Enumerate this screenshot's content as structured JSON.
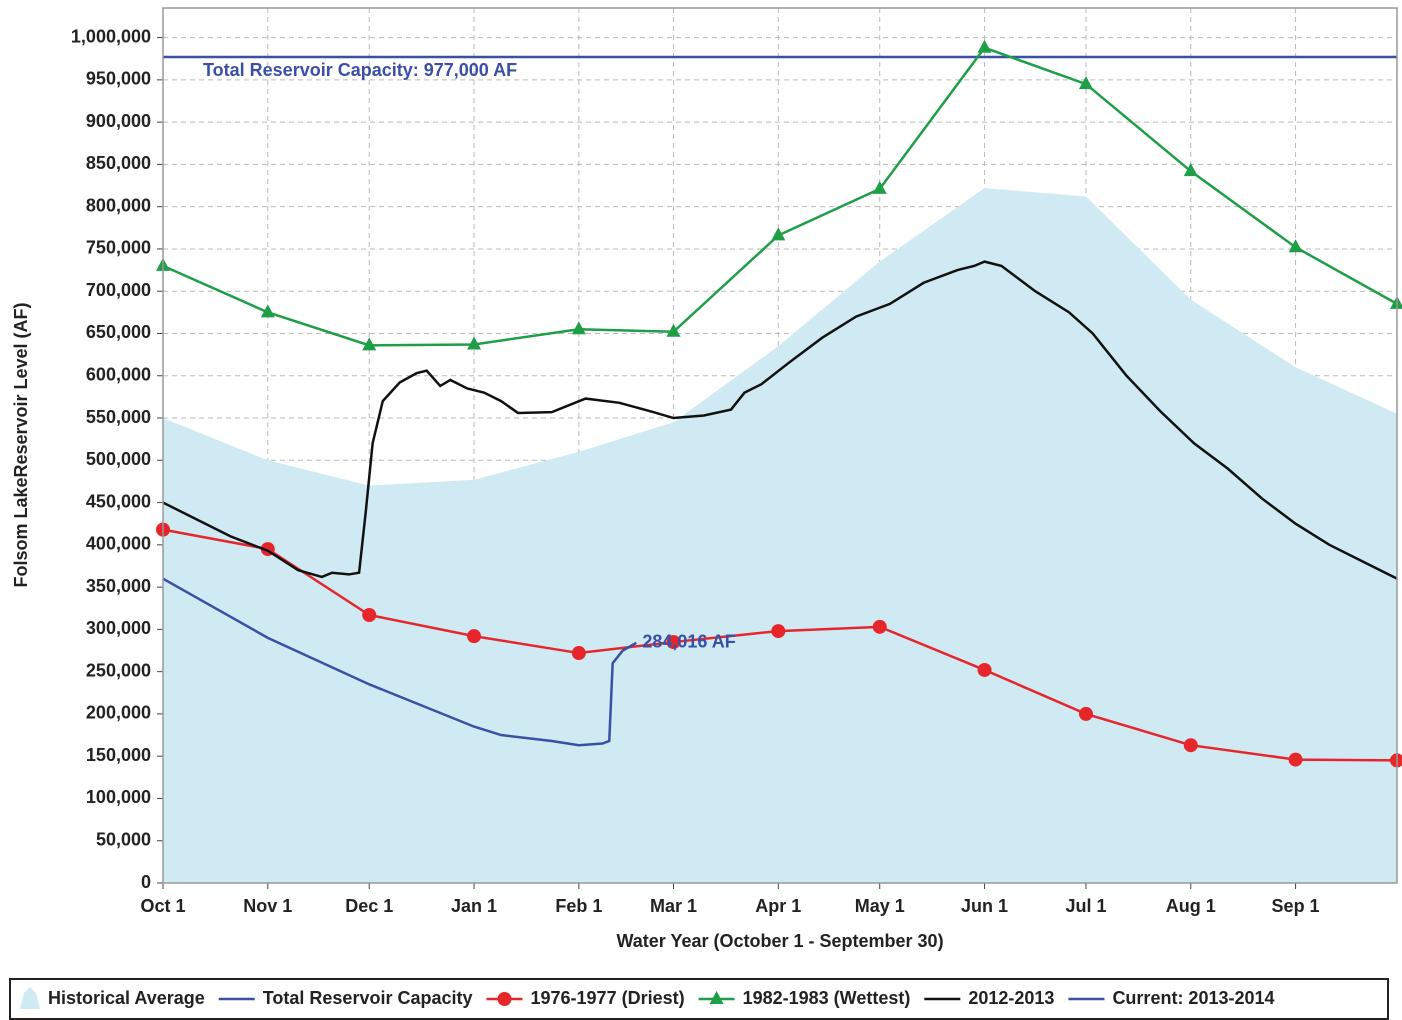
{
  "chart_data": {
    "type": "line",
    "xlabel": "Water Year (October 1 - September 30)",
    "ylabel": "Folsom LakeReservoir Level (AF)",
    "xlim": [
      0,
      365
    ],
    "xticks": [
      {
        "value": 0,
        "label": "Oct 1"
      },
      {
        "value": 31,
        "label": "Nov 1"
      },
      {
        "value": 61,
        "label": "Dec 1"
      },
      {
        "value": 92,
        "label": "Jan 1"
      },
      {
        "value": 123,
        "label": "Feb 1"
      },
      {
        "value": 151,
        "label": "Mar 1"
      },
      {
        "value": 182,
        "label": "Apr 1"
      },
      {
        "value": 212,
        "label": "May 1"
      },
      {
        "value": 243,
        "label": "Jun 1"
      },
      {
        "value": 273,
        "label": "Jul 1"
      },
      {
        "value": 304,
        "label": "Aug 1"
      },
      {
        "value": 335,
        "label": "Sep 1"
      }
    ],
    "ylim": [
      0,
      1035000
    ],
    "yticks": [
      0,
      {
        "value": 50000,
        "label": "50,000"
      },
      {
        "value": 100000,
        "label": "100,000"
      },
      {
        "value": 150000,
        "label": "150,000"
      },
      {
        "value": 200000,
        "label": "200,000"
      },
      {
        "value": 250000,
        "label": "250,000"
      },
      {
        "value": 300000,
        "label": "300,000"
      },
      {
        "value": 350000,
        "label": "350,000"
      },
      {
        "value": 400000,
        "label": "400,000"
      },
      {
        "value": 450000,
        "label": "450,000"
      },
      {
        "value": 500000,
        "label": "500,000"
      },
      {
        "value": 550000,
        "label": "550,000"
      },
      {
        "value": 600000,
        "label": "600,000"
      },
      {
        "value": 650000,
        "label": "650,000"
      },
      {
        "value": 700000,
        "label": "700,000"
      },
      {
        "value": 750000,
        "label": "750,000"
      },
      {
        "value": 800000,
        "label": "800,000"
      },
      {
        "value": 850000,
        "label": "850,000"
      },
      {
        "value": 900000,
        "label": "900,000"
      },
      {
        "value": 950000,
        "label": "950,000"
      },
      {
        "value": 1000000,
        "label": "1,000,000"
      }
    ],
    "grid": true,
    "legend": "bottom",
    "series": [
      {
        "name": "Historical Average",
        "color": "#cfeaf3",
        "style": "area",
        "x": [
          0,
          31,
          61,
          92,
          123,
          151,
          182,
          212,
          243,
          273,
          304,
          335,
          365
        ],
        "values": [
          550000,
          500000,
          470000,
          477000,
          510000,
          545000,
          635000,
          735000,
          822000,
          812000,
          690000,
          610000,
          555000
        ]
      },
      {
        "name": "Total Reservoir Capacity",
        "color": "#3a4fa6",
        "style": "line",
        "label": "Total Reservoir Capacity: 977,000 AF",
        "x": [
          0,
          365
        ],
        "values": [
          977000,
          977000
        ]
      },
      {
        "name": "1976-1977 (Driest)",
        "color": "#e6262b",
        "style": "line",
        "marker": "circle",
        "x": [
          0,
          31,
          61,
          92,
          123,
          151,
          182,
          212,
          243,
          273,
          304,
          335,
          365
        ],
        "values": [
          418000,
          395000,
          317000,
          292000,
          272000,
          285000,
          298000,
          303000,
          252000,
          200000,
          163000,
          146000,
          145000
        ]
      },
      {
        "name": "1982-1983 (Wettest)",
        "color": "#1f9e48",
        "style": "line",
        "marker": "triangle",
        "x": [
          0,
          31,
          61,
          92,
          123,
          151,
          182,
          212,
          243,
          273,
          304,
          335,
          365
        ],
        "values": [
          730000,
          675000,
          636000,
          637000,
          655000,
          652000,
          766000,
          821000,
          988000,
          945000,
          842000,
          752000,
          685000
        ]
      },
      {
        "name": "2012-2013",
        "color": "#111111",
        "style": "line",
        "x": [
          0,
          10,
          20,
          31,
          40,
          47,
          50,
          55,
          58,
          60,
          62,
          65,
          70,
          75,
          78,
          82,
          85,
          90,
          95,
          100,
          105,
          115,
          120,
          125,
          135,
          145,
          151,
          160,
          168,
          172,
          177,
          185,
          195,
          205,
          215,
          225,
          235,
          240,
          243,
          248,
          258,
          268,
          275,
          285,
          295,
          305,
          315,
          325,
          335,
          345,
          355,
          365
        ],
        "values": [
          450000,
          430000,
          410000,
          393000,
          370000,
          362000,
          367000,
          365000,
          367000,
          440000,
          520000,
          570000,
          592000,
          603000,
          606000,
          588000,
          595000,
          585000,
          580000,
          570000,
          556000,
          557000,
          565000,
          573000,
          568000,
          557000,
          550000,
          553000,
          560000,
          580000,
          590000,
          615000,
          645000,
          670000,
          685000,
          710000,
          725000,
          730000,
          735000,
          730000,
          700000,
          675000,
          650000,
          600000,
          558000,
          520000,
          490000,
          455000,
          425000,
          400000,
          380000,
          360000
        ]
      },
      {
        "name": "Current: 2013-2014",
        "color": "#3a4fa6",
        "style": "line",
        "label": "284,016 AF",
        "x": [
          0,
          31,
          61,
          92,
          100,
          115,
          123,
          130,
          132,
          133,
          136,
          140
        ],
        "values": [
          360000,
          290000,
          235000,
          185000,
          175000,
          168000,
          163000,
          165000,
          168000,
          260000,
          275000,
          284016
        ]
      }
    ]
  }
}
